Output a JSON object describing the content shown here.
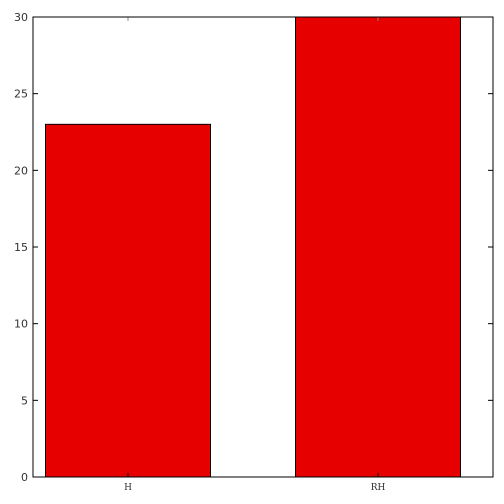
{
  "chart_data": {
    "type": "bar",
    "title": "",
    "xlabel": "",
    "ylabel": "",
    "categories": [
      "H",
      "RH"
    ],
    "values": [
      23,
      30
    ],
    "ylim": [
      0,
      30
    ],
    "yticks": [
      0,
      5,
      10,
      15,
      20,
      25,
      30
    ],
    "ytick_labels": [
      "0",
      "5",
      "10",
      "15",
      "20",
      "25",
      "30"
    ],
    "grid": false,
    "legend": "none",
    "colors": {
      "bar_fill": "#e60000",
      "bar_edge": "#000000",
      "axes": "#000000",
      "background": "#ffffff"
    }
  }
}
